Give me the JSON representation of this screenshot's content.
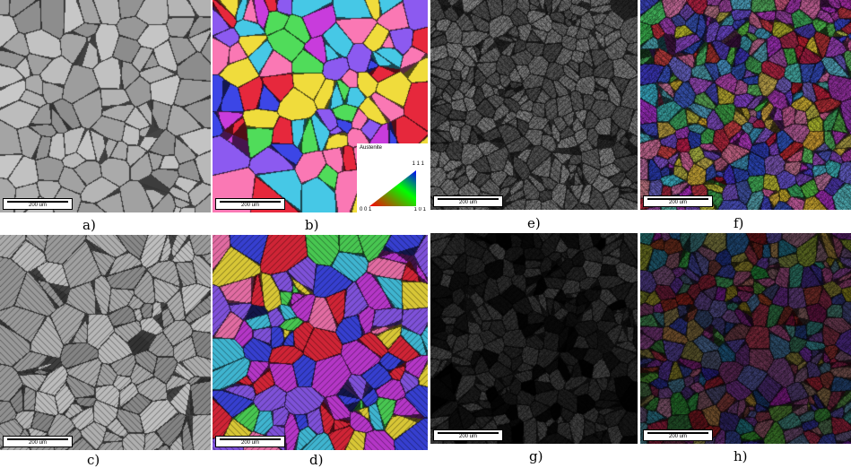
{
  "panels": [
    {
      "id": "a",
      "label": "a)",
      "style": "grayscale-grains",
      "scale_bar": "200 um"
    },
    {
      "id": "b",
      "label": "b)",
      "style": "ipf-color-grains",
      "scale_bar": "200 um"
    },
    {
      "id": "c",
      "label": "c)",
      "style": "grayscale-twinned",
      "scale_bar": "200 um"
    },
    {
      "id": "d",
      "label": "d)",
      "style": "ipf-color-twinned",
      "scale_bar": "200 um"
    },
    {
      "id": "e",
      "label": "e)",
      "style": "dark-gray-deformed",
      "scale_bar": "200 um"
    },
    {
      "id": "f",
      "label": "f)",
      "style": "ipf-dark-deformed",
      "scale_bar": "200 um"
    },
    {
      "id": "g",
      "label": "g)",
      "style": "very-dark-deformed",
      "scale_bar": "200 um"
    },
    {
      "id": "h",
      "label": "h)",
      "style": "ipf-very-dark",
      "scale_bar": "200 um"
    }
  ],
  "legend": {
    "title": "Austenite",
    "corner_111": "1 1 1",
    "corner_001": "0 0 1",
    "corner_101": "1 0 1"
  }
}
